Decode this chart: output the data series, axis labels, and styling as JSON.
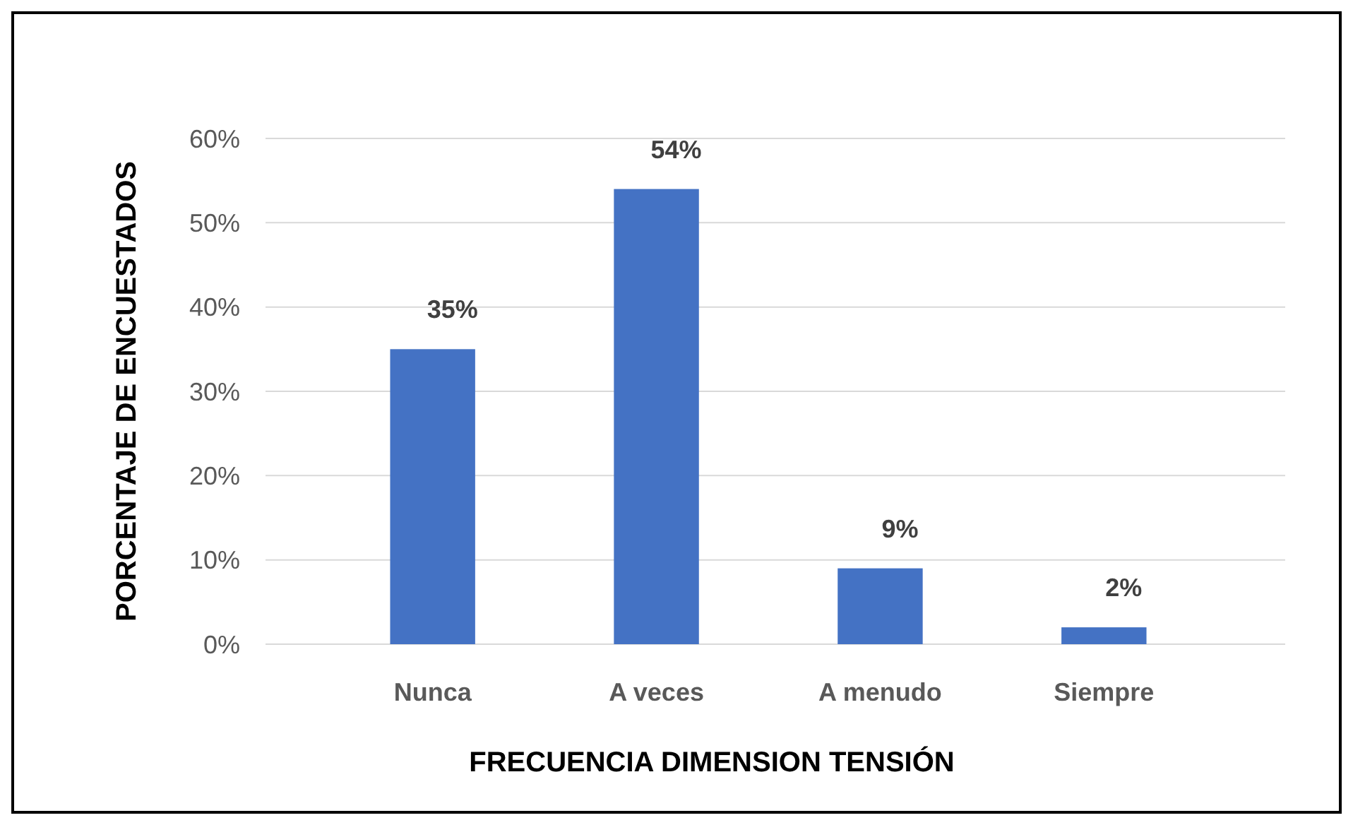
{
  "chart_data": {
    "type": "bar",
    "xlabel": "FRECUENCIA DIMENSION TENSIÓN",
    "ylabel": "PORCENTAJE DE ENCUESTADOS",
    "categories": [
      "Nunca",
      "A veces",
      "A menudo",
      "Siempre"
    ],
    "values": [
      35,
      54,
      9,
      2
    ],
    "color": "#4472c4",
    "value_labels": [
      "35%",
      "54%",
      "9%",
      "2%"
    ],
    "ylim": [
      0,
      60
    ],
    "yticks": [
      {
        "value": 0,
        "label": "0%"
      },
      {
        "value": 10,
        "label": "10%"
      },
      {
        "value": 20,
        "label": "20%"
      },
      {
        "value": 30,
        "label": "30%"
      },
      {
        "value": 40,
        "label": "40%"
      },
      {
        "value": 50,
        "label": "50%"
      },
      {
        "value": 60,
        "label": "60%"
      }
    ],
    "grid": "y"
  }
}
